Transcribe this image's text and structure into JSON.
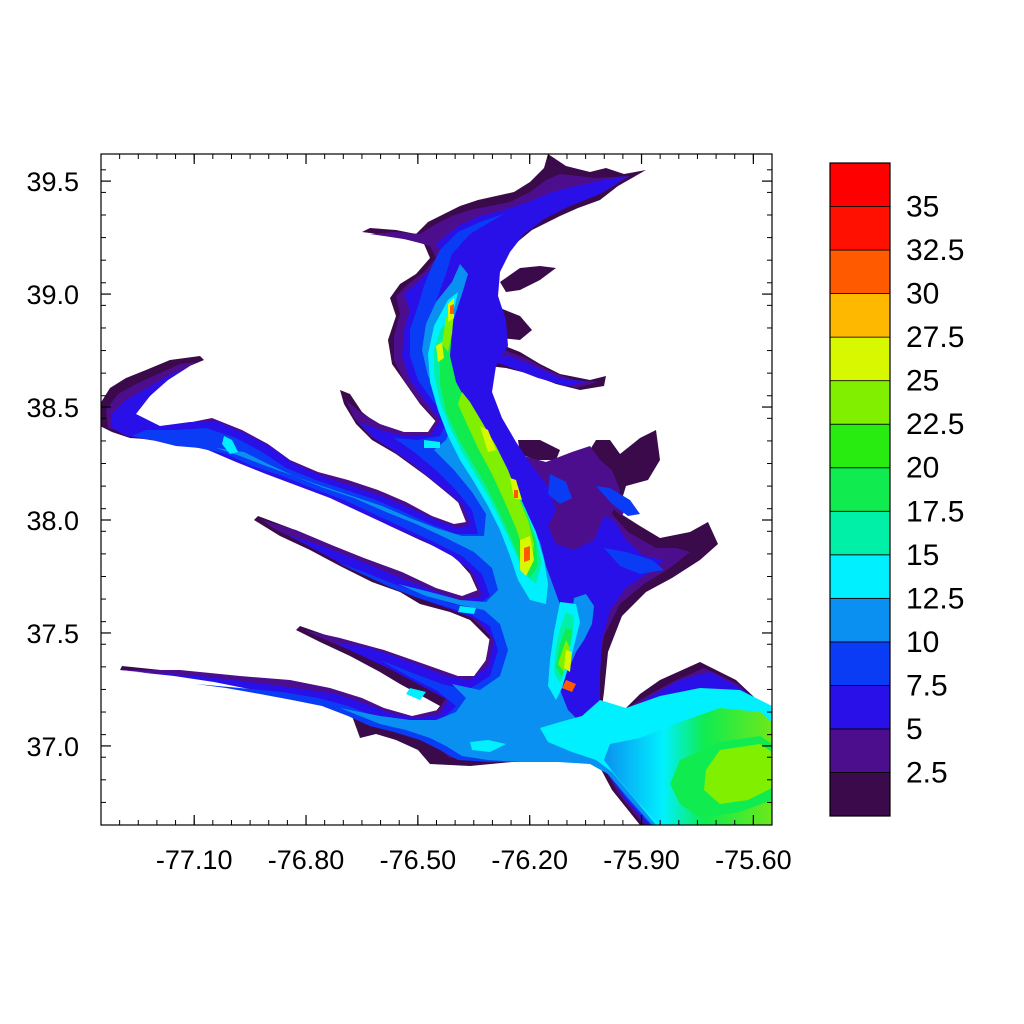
{
  "chart_data": {
    "type": "heatmap",
    "title": "",
    "xlabel": "",
    "ylabel": "",
    "xlim": [
      -77.35,
      -75.55
    ],
    "ylim": [
      36.65,
      39.62
    ],
    "x_ticks": [
      "-77.10",
      "-76.80",
      "-76.50",
      "-76.20",
      "-75.90",
      "-75.60"
    ],
    "x_tick_values": [
      -77.1,
      -76.8,
      -76.5,
      -76.2,
      -75.9,
      -75.6
    ],
    "y_ticks": [
      "37.0",
      "37.5",
      "38.0",
      "38.5",
      "39.0",
      "39.5"
    ],
    "y_tick_values": [
      37.0,
      37.5,
      38.0,
      38.5,
      39.0,
      39.5
    ],
    "colorbar": {
      "levels": [
        0,
        2.5,
        5,
        7.5,
        10,
        12.5,
        15,
        17.5,
        20,
        22.5,
        25,
        27.5,
        30,
        32.5,
        35,
        37.5
      ],
      "labels": [
        "2.5",
        "5",
        "7.5",
        "10",
        "12.5",
        "15",
        "17.5",
        "20",
        "22.5",
        "25",
        "27.5",
        "30",
        "32.5",
        "35"
      ],
      "colors": [
        "#3a0a4a",
        "#4d0e8e",
        "#2a10e8",
        "#0a3cf5",
        "#0a90f0",
        "#00f0ff",
        "#00f0a8",
        "#10ec50",
        "#28ec10",
        "#80f000",
        "#d8f800",
        "#ffb800",
        "#ff5a00",
        "#ff1000",
        "#ff0000"
      ]
    },
    "grid": false,
    "legend": "right"
  }
}
